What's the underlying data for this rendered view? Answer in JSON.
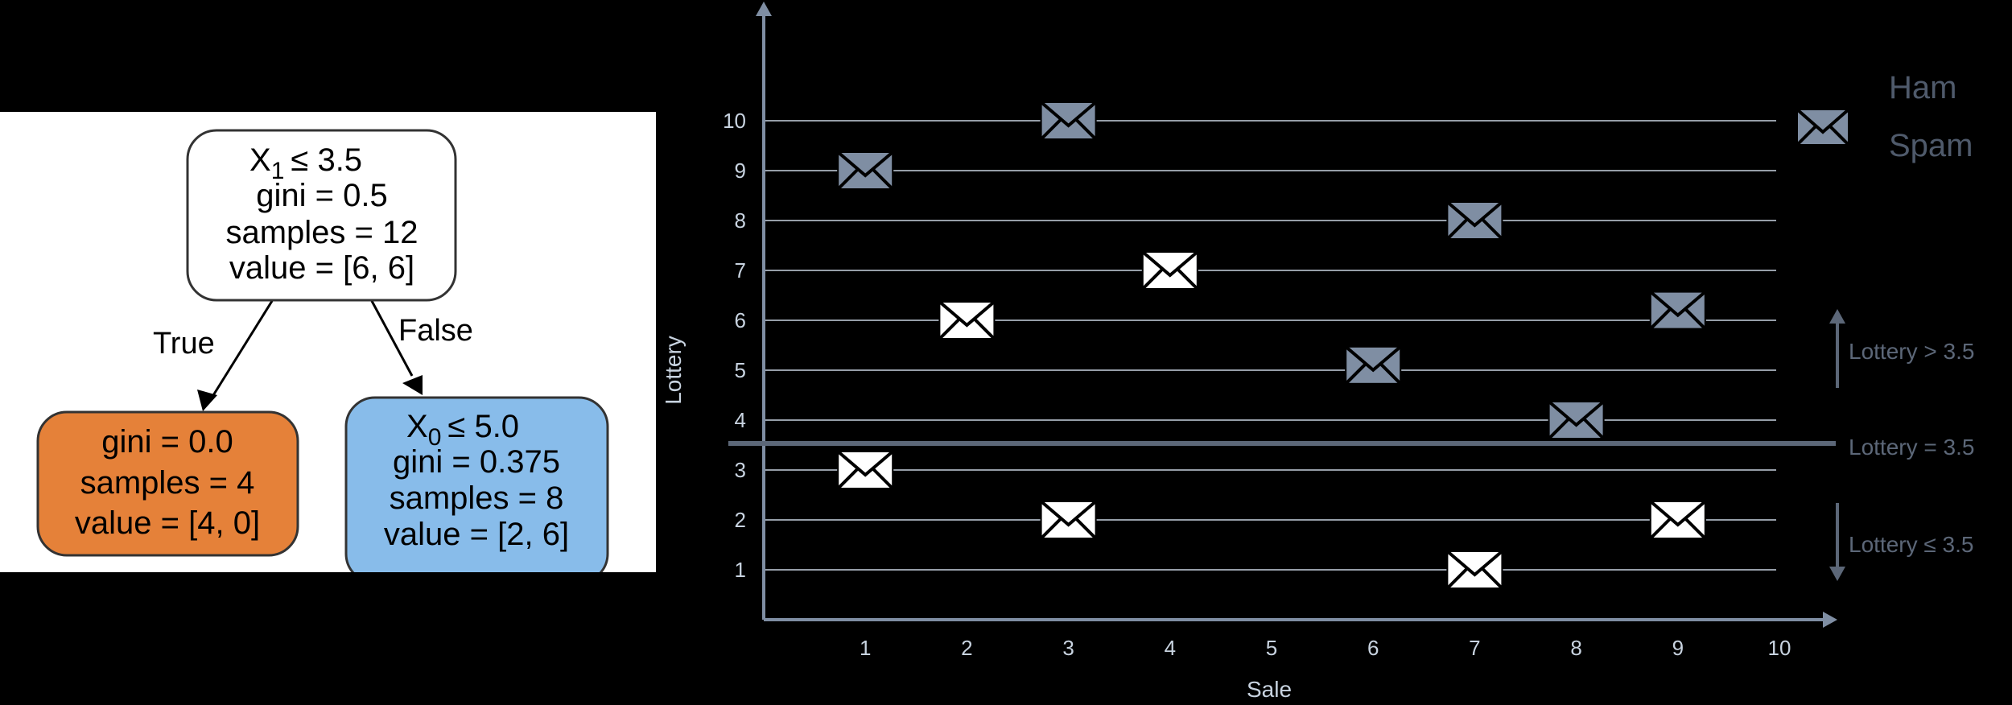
{
  "tree": {
    "nodes": [
      {
        "id": "root",
        "lines": [
          "≤ 3.5",
          "gini = 0.5",
          "samples = 12",
          "value = [6, 6]"
        ],
        "var": "X",
        "sub": "1",
        "fill": "#ffffff"
      },
      {
        "id": "left",
        "lines": [
          "gini = 0.0",
          "samples = 4",
          "value = [4, 0]"
        ],
        "fill": "#e58139"
      },
      {
        "id": "right",
        "lines": [
          "≤ 5.0",
          "gini = 0.375",
          "samples = 8",
          "value = [2, 6]"
        ],
        "var": "X",
        "sub": "0",
        "fill": "#88bcea"
      }
    ],
    "edge_true": "True",
    "edge_false": "False"
  },
  "chart_data": {
    "type": "scatter",
    "xlabel": "Sale",
    "ylabel": "Lottery",
    "x_ticks": [
      1,
      2,
      3,
      4,
      5,
      6,
      7,
      8,
      9,
      10
    ],
    "y_ticks": [
      1,
      2,
      3,
      4,
      5,
      6,
      7,
      8,
      9,
      10
    ],
    "xlim": [
      0,
      10
    ],
    "ylim": [
      0,
      10
    ],
    "grid": "horizontal",
    "threshold": 3.5,
    "series": [
      {
        "name": "Ham",
        "color": "#ffffff",
        "points": [
          [
            2,
            6
          ],
          [
            4,
            7
          ],
          [
            1,
            3
          ],
          [
            3,
            2
          ],
          [
            7,
            1
          ],
          [
            9,
            2
          ]
        ]
      },
      {
        "name": "Spam",
        "color": "#7f8ea3",
        "points": [
          [
            1,
            9
          ],
          [
            3,
            10
          ],
          [
            7,
            8
          ],
          [
            9,
            6.2
          ],
          [
            6,
            5.1
          ],
          [
            8,
            4
          ]
        ]
      }
    ],
    "annotations": {
      "above": "Lottery > 3.5",
      "equal": "Lottery = 3.5",
      "below": "Lottery ≤ 3.5"
    },
    "icon": "envelope-icon"
  }
}
